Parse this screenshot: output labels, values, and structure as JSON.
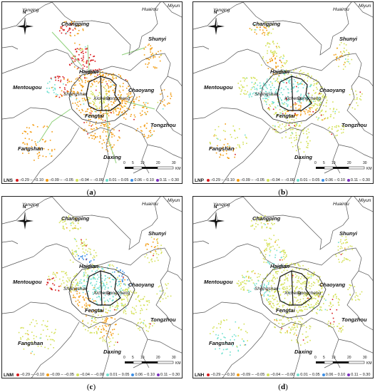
{
  "panels": [
    {
      "id": "a",
      "indicator": "LNS",
      "caption": "a"
    },
    {
      "id": "b",
      "indicator": "LNP",
      "caption": "b"
    },
    {
      "id": "c",
      "indicator": "LNM",
      "caption": "c"
    },
    {
      "id": "d",
      "indicator": "LNH",
      "caption": "d"
    }
  ],
  "place_labels": {
    "yanqing": "Yanqing",
    "huairou": "Huairou",
    "miyun": "Miyun",
    "changping": "Changping",
    "shunyi": "Shunyi",
    "haidian": "Haidian",
    "mentougou": "Mentougou",
    "chaoyang": "Chaoyang",
    "shijingshan": "Shijingshan",
    "xicheng": "Xicheng",
    "dongcheng": "Dongcheng",
    "fengtai": "Fengtai",
    "tongzhou": "Tongzhou",
    "fangshan": "Fangshan",
    "daxing": "Daxing"
  },
  "compass_label": "N",
  "scale_bar": {
    "ticks": [
      "0",
      "5",
      "10",
      "20",
      "30"
    ],
    "unit": "KM"
  },
  "legend_items": [
    {
      "label": "−0.29 – −0.10",
      "color": "#d7191c"
    },
    {
      "label": "−0.09 – −0.05",
      "color": "#f39c12"
    },
    {
      "label": "−0.04 – −0.00",
      "color": "#d4e157"
    },
    {
      "label": "0.01 – 0.05",
      "color": "#6fe0d0"
    },
    {
      "label": "0.06 – 0.10",
      "color": "#3a8ee6"
    },
    {
      "label": "0.11 – 0.30",
      "color": "#7b2fbe"
    }
  ]
}
